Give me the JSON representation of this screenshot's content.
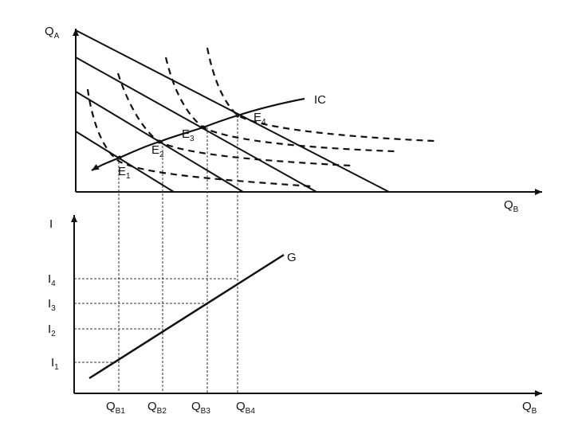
{
  "top_panel": {
    "y_axis_label": "Q",
    "y_axis_sub": "A",
    "x_axis_label": "Q",
    "x_axis_sub": "B",
    "curve_label": "IC",
    "points": [
      {
        "label": "E",
        "sub": "1"
      },
      {
        "label": "E",
        "sub": "2"
      },
      {
        "label": "E",
        "sub": "3"
      },
      {
        "label": "E",
        "sub": "4"
      }
    ]
  },
  "bottom_panel": {
    "y_axis_label": "I",
    "x_axis_label": "Q",
    "x_axis_sub": "B",
    "curve_label": "G",
    "y_ticks": [
      {
        "label": "I",
        "sub": "1"
      },
      {
        "label": "I",
        "sub": "2"
      },
      {
        "label": "I",
        "sub": "3"
      },
      {
        "label": "I",
        "sub": "4"
      }
    ],
    "x_ticks": [
      {
        "label": "Q",
        "sub": "B1"
      },
      {
        "label": "Q",
        "sub": "B2"
      },
      {
        "label": "Q",
        "sub": "B3"
      },
      {
        "label": "Q",
        "sub": "B4"
      }
    ]
  }
}
